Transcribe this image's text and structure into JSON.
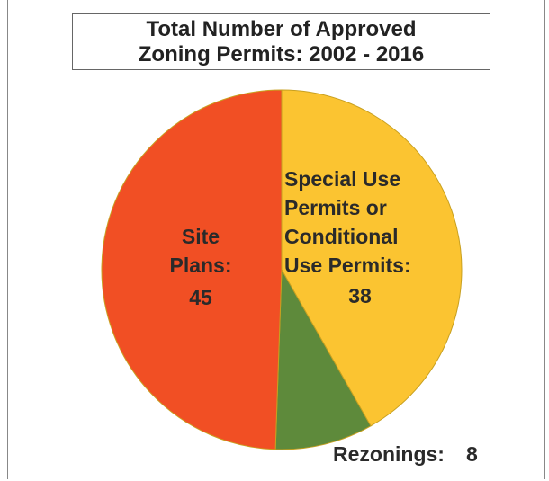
{
  "chart_data": {
    "type": "pie",
    "title": "Total Number of Approved Zoning Permits: 2002 - 2016",
    "categories": [
      "Special Use Permits or Conditional Use Permits:",
      "Rezonings:",
      "Site Plans:"
    ],
    "values": [
      38,
      8,
      45
    ],
    "colors": [
      "#fbc431",
      "#5e8a3b",
      "#f14f24"
    ]
  }
}
